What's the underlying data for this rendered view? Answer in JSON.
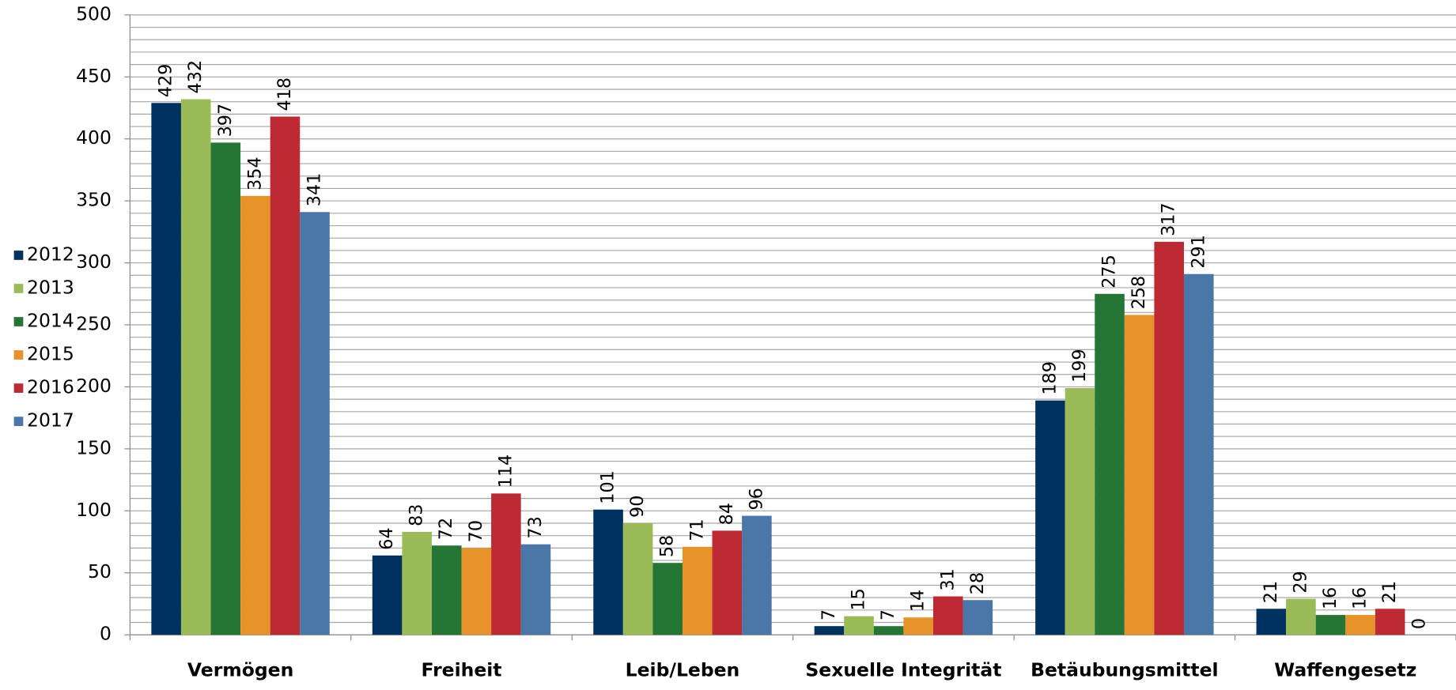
{
  "chart_data": {
    "type": "bar",
    "categories": [
      "Vermögen",
      "Freiheit",
      "Leib/Leben",
      "Sexuelle Integrität",
      "Betäubungsmittel",
      "Waffengesetz"
    ],
    "series": [
      {
        "name": "2012",
        "color": "#00325f",
        "values": [
          429,
          64,
          101,
          7,
          189,
          21
        ]
      },
      {
        "name": "2013",
        "color": "#9bbb59",
        "values": [
          432,
          83,
          90,
          15,
          199,
          29
        ]
      },
      {
        "name": "2014",
        "color": "#257534",
        "values": [
          397,
          72,
          58,
          7,
          275,
          16
        ]
      },
      {
        "name": "2015",
        "color": "#e8922a",
        "values": [
          354,
          70,
          71,
          14,
          258,
          16
        ]
      },
      {
        "name": "2016",
        "color": "#be2a33",
        "values": [
          418,
          114,
          84,
          31,
          317,
          21
        ]
      },
      {
        "name": "2017",
        "color": "#4a76a8",
        "values": [
          341,
          73,
          96,
          28,
          291,
          0
        ]
      }
    ],
    "ylim": [
      0,
      500
    ],
    "yticks": [
      0,
      50,
      100,
      150,
      200,
      250,
      300,
      350,
      400,
      450,
      500
    ],
    "yminorticks": [
      0,
      10,
      20,
      30,
      40,
      50,
      60,
      70,
      80,
      90,
      100,
      110,
      120,
      130,
      140,
      150,
      160,
      170,
      180,
      190,
      200,
      210,
      220,
      230,
      240,
      250,
      260,
      270,
      280,
      290,
      300,
      310,
      320,
      330,
      340,
      350,
      360,
      370,
      380,
      390,
      400,
      410,
      420,
      430,
      440,
      450,
      460,
      470,
      480,
      490,
      500
    ],
    "grid": true,
    "legend": "left"
  }
}
